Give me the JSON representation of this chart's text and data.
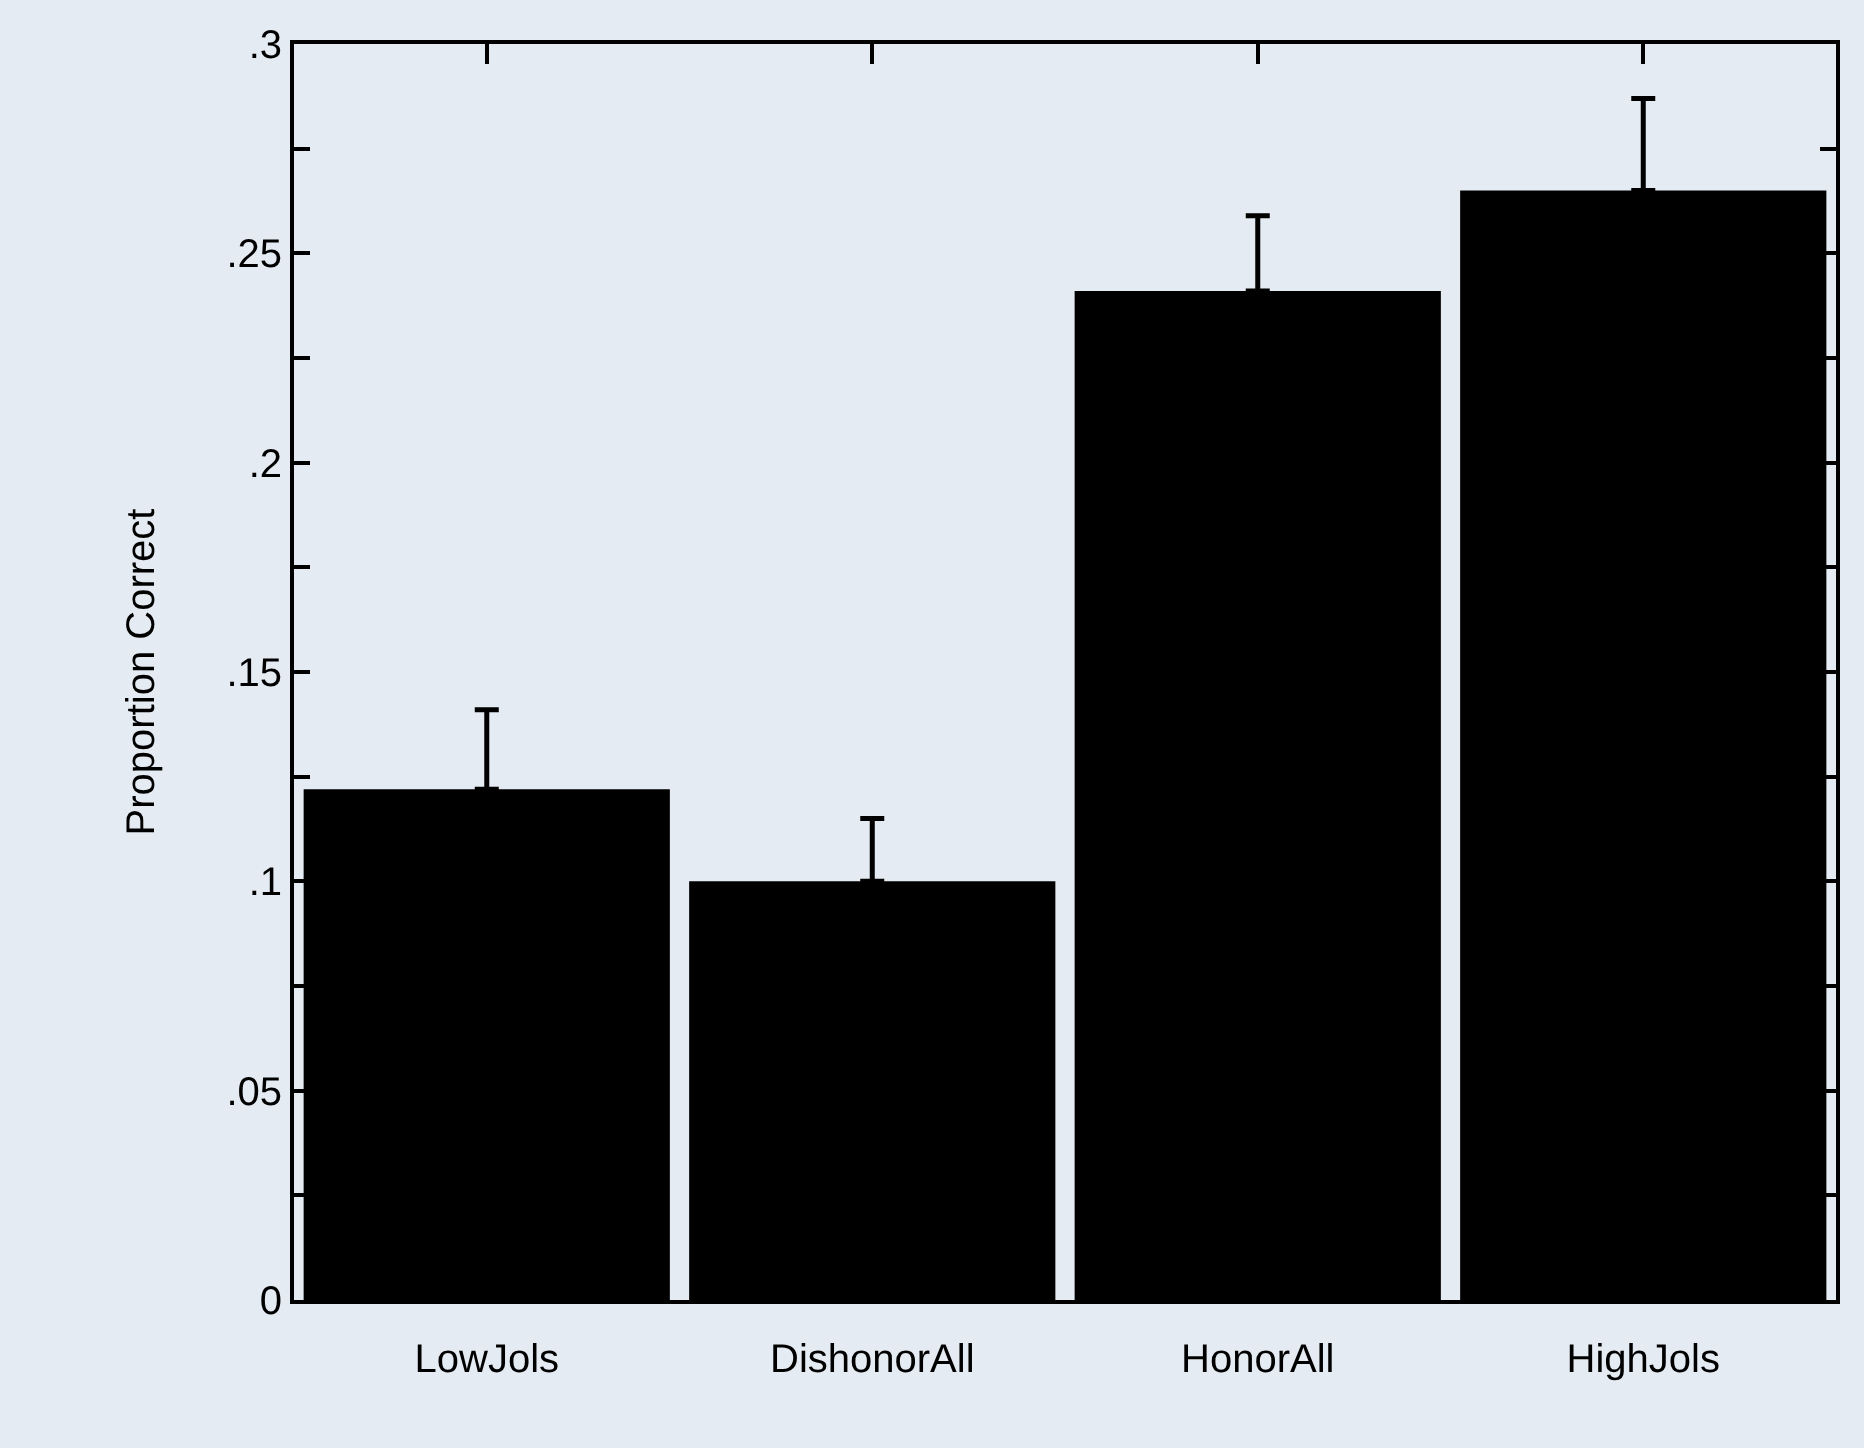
{
  "chart_data": {
    "type": "bar",
    "ylabel": "Proportion Correct",
    "categories": [
      "LowJols",
      "DishonorAll",
      "HonorAll",
      "HighJols"
    ],
    "values": [
      0.122,
      0.1,
      0.241,
      0.265
    ],
    "errors": [
      [
        0.122,
        0.141
      ],
      [
        0.1,
        0.115
      ],
      [
        0.241,
        0.259
      ],
      [
        0.265,
        0.287
      ]
    ],
    "color": "#000000",
    "ylim": [
      0,
      0.3
    ],
    "yticks": [
      {
        "value": 0,
        "label": "0"
      },
      {
        "value": 0.025,
        "label": null
      },
      {
        "value": 0.05,
        "label": ".05"
      },
      {
        "value": 0.075,
        "label": null
      },
      {
        "value": 0.1,
        "label": ".1"
      },
      {
        "value": 0.125,
        "label": null
      },
      {
        "value": 0.15,
        "label": ".15"
      },
      {
        "value": 0.175,
        "label": null
      },
      {
        "value": 0.2,
        "label": ".2"
      },
      {
        "value": 0.225,
        "label": null
      },
      {
        "value": 0.25,
        "label": ".25"
      },
      {
        "value": 0.275,
        "label": null
      },
      {
        "value": 0.3,
        "label": ".3"
      }
    ],
    "grid": false
  }
}
